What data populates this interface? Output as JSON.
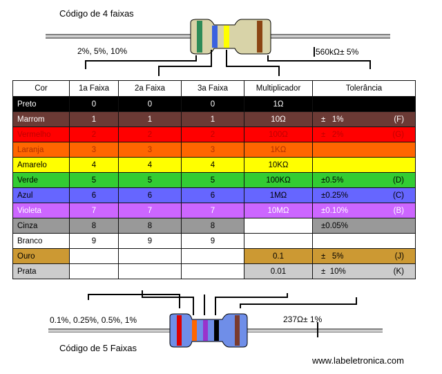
{
  "top": {
    "title": "Código de 4 faixas",
    "left_tol": "2%, 5%, 10%",
    "right_value": "560kΩ± 5%"
  },
  "bottom": {
    "title": "Código de 5 Faixas",
    "left_tol": "0.1%, 0.25%, 0.5%, 1%",
    "right_value": "237Ω± 1%"
  },
  "website": "www.labeletronica.com",
  "table": {
    "headers": [
      "Cor",
      "1a Faixa",
      "2a Faixa",
      "3a Faixa",
      "Multiplicador",
      "Tolerância"
    ],
    "rows": [
      {
        "cor": "Preto",
        "f1": "0",
        "f2": "0",
        "f3": "0",
        "mult": "1Ω",
        "tol": "",
        "code": "",
        "color": "#000000",
        "text": "#ffffff"
      },
      {
        "cor": "Marrom",
        "f1": "1",
        "f2": "1",
        "f3": "1",
        "mult": "10Ω",
        "tol": "±   1%",
        "code": "(F)",
        "color": "#6b3a35",
        "text": "#ffffff"
      },
      {
        "cor": "Vermelho",
        "f1": "2",
        "f2": "2",
        "f3": "2",
        "mult": "100Ω",
        "tol": "±   2%",
        "code": "(G)",
        "color": "#ff0000",
        "text": "#c00000"
      },
      {
        "cor": "Laranja",
        "f1": "3",
        "f2": "3",
        "f3": "3",
        "mult": "1KΩ",
        "tol": "",
        "code": "",
        "color": "#ff6600",
        "text": "#b03000"
      },
      {
        "cor": "Amarelo",
        "f1": "4",
        "f2": "4",
        "f3": "4",
        "mult": "10KΩ",
        "tol": "",
        "code": "",
        "color": "#ffff00",
        "text": "#000000"
      },
      {
        "cor": "Verde",
        "f1": "5",
        "f2": "5",
        "f3": "5",
        "mult": "100KΩ",
        "tol": "±0.5%",
        "code": "(D)",
        "color": "#33cc33",
        "text": "#000000"
      },
      {
        "cor": "Azul",
        "f1": "6",
        "f2": "6",
        "f3": "6",
        "mult": "1MΩ",
        "tol": "±0.25%",
        "code": "(C)",
        "color": "#6666ff",
        "text": "#000000"
      },
      {
        "cor": "Violeta",
        "f1": "7",
        "f2": "7",
        "f3": "7",
        "mult": "10MΩ",
        "tol": "±0.10%",
        "code": "(B)",
        "color": "#cc66ff",
        "text": "#ffffff"
      },
      {
        "cor": "Cinza",
        "f1": "8",
        "f2": "8",
        "f3": "8",
        "mult": "",
        "tol": "±0.05%",
        "code": "",
        "color": "#999999",
        "text": "#000000"
      },
      {
        "cor": "Branco",
        "f1": "9",
        "f2": "9",
        "f3": "9",
        "mult": "",
        "tol": "",
        "code": "",
        "color": "#ffffff",
        "text": "#000000"
      },
      {
        "cor": "Ouro",
        "f1": "",
        "f2": "",
        "f3": "",
        "mult": "0.1",
        "tol": "±   5%",
        "code": "(J)",
        "color": "#cc9933",
        "text": "#000000"
      },
      {
        "cor": "Prata",
        "f1": "",
        "f2": "",
        "f3": "",
        "mult": "0.01",
        "tol": "±  10%",
        "code": "(K)",
        "color": "#cccccc",
        "text": "#000000"
      }
    ]
  },
  "colors": {
    "top_resistor_body": "#d8d3a8",
    "bottom_resistor_body": "#6f8ee8"
  }
}
